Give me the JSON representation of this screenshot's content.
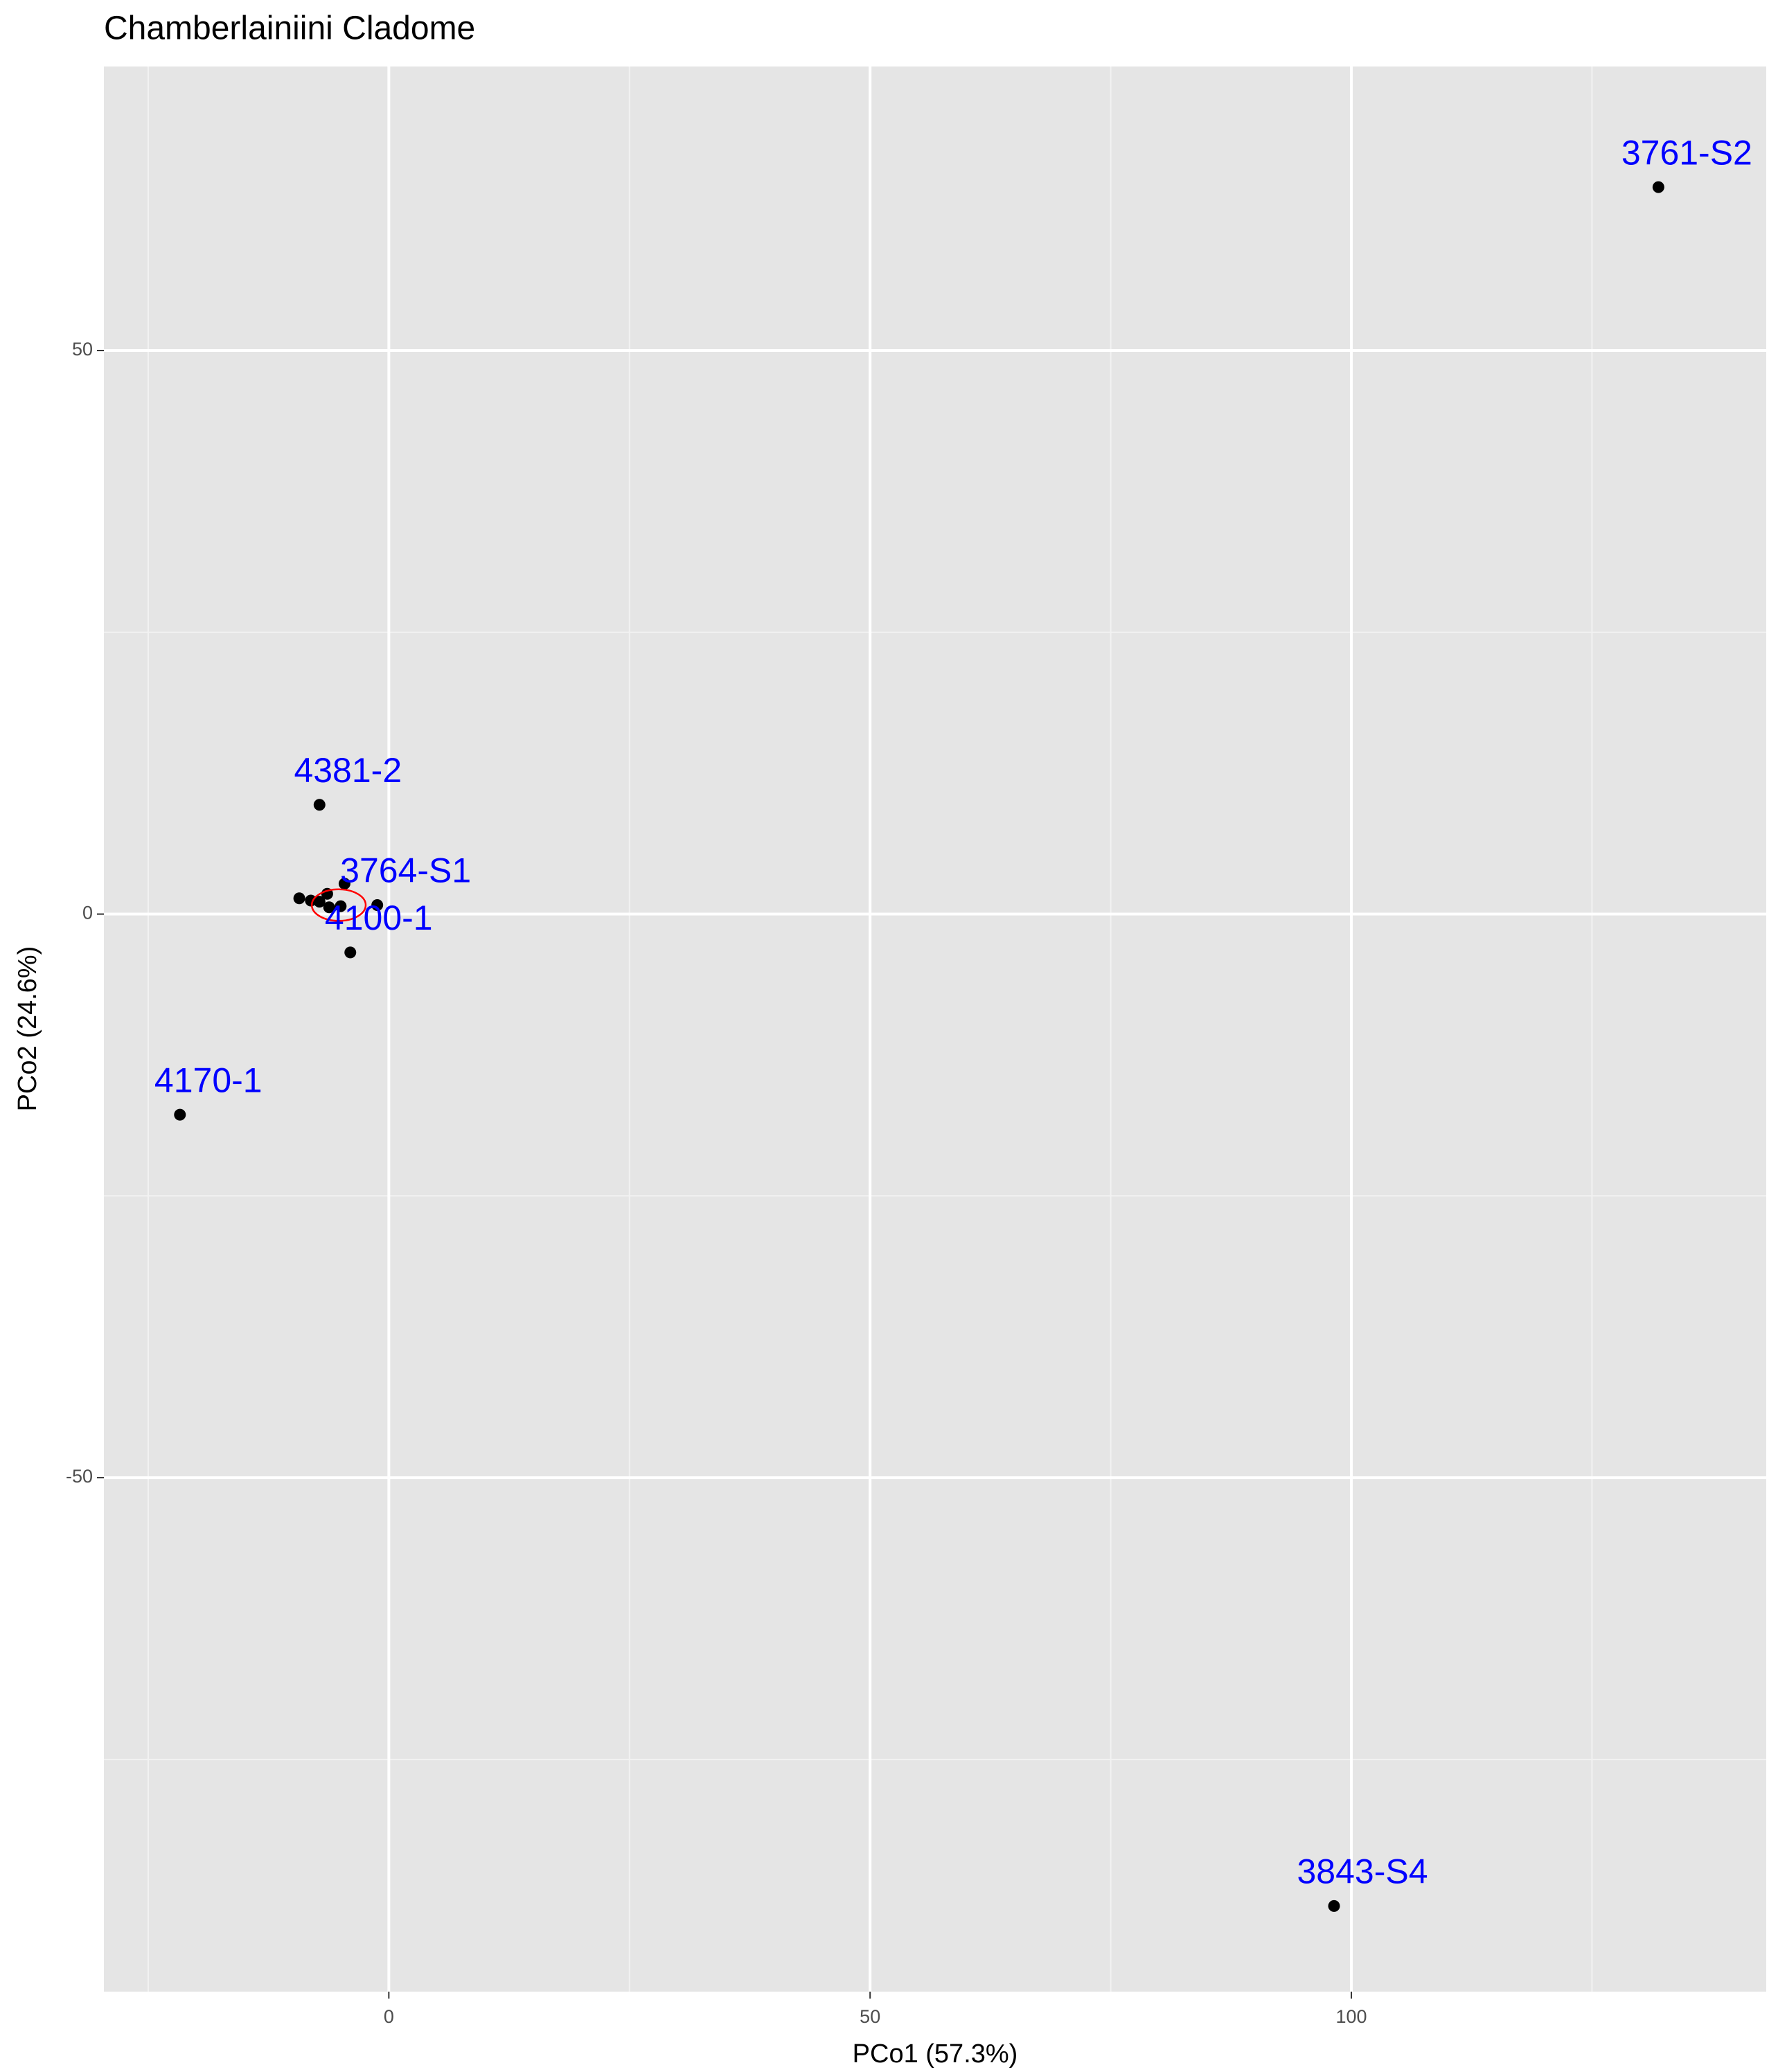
{
  "chart_data": {
    "type": "scatter",
    "title": "Chamberlainiini Cladome",
    "x_label": "PCo1 (57.3%)",
    "y_label": "PCo2 (24.6%)",
    "x": [
      131.9,
      98.2,
      -21.7,
      -7.2,
      -1.2,
      -4.0,
      -9.3,
      -8.1,
      -7.2,
      -6.4,
      -6.2,
      -5.0,
      -4.6
    ],
    "y": [
      64.5,
      -88.0,
      -17.8,
      9.7,
      0.8,
      -3.4,
      1.4,
      1.2,
      1.1,
      1.8,
      0.6,
      0.7,
      2.7
    ],
    "labels": [
      "3761-S2",
      "3843-S4",
      "4170-1",
      "4381-2",
      "3764-S1",
      "4100-1",
      null,
      null,
      null,
      null,
      null,
      null,
      null
    ],
    "point_color": "#000000",
    "label_color": "#0000ff",
    "ellipse": {
      "cx": -5.2,
      "cy": 0.8,
      "rx": 2.8,
      "ry": 1.4,
      "color": "#ff0000"
    },
    "xlim": [
      -29.6,
      143.1
    ],
    "ylim": [
      -95.6,
      75.2
    ],
    "xticks": [
      0,
      50,
      100
    ],
    "yticks": [
      -50,
      0,
      50
    ],
    "xminor": [
      -25,
      25,
      75,
      125
    ],
    "yminor": [
      -75,
      -25,
      25
    ],
    "grid": true,
    "background": "#e5e5e5"
  }
}
